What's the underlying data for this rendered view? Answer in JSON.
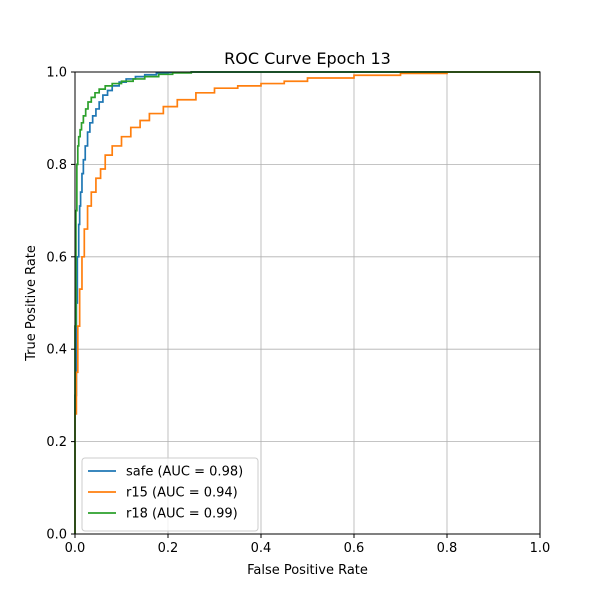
{
  "chart_data": {
    "type": "line",
    "title": "ROC Curve Epoch 13",
    "xlabel": "False Positive Rate",
    "ylabel": "True Positive Rate",
    "xlim": [
      0,
      1
    ],
    "ylim": [
      0,
      1
    ],
    "xticks": [
      "0.0",
      "0.2",
      "0.4",
      "0.6",
      "0.8",
      "1.0"
    ],
    "yticks": [
      "0.0",
      "0.2",
      "0.4",
      "0.6",
      "0.8",
      "1.0"
    ],
    "grid": true,
    "legend_position": "lower-left",
    "series": [
      {
        "name": "safe (AUC = 0.98)",
        "color": "#1f77b4",
        "x": [
          0,
          0,
          0.003,
          0.005,
          0.008,
          0.01,
          0.012,
          0.015,
          0.018,
          0.022,
          0.027,
          0.032,
          0.038,
          0.045,
          0.052,
          0.06,
          0.07,
          0.08,
          0.095,
          0.11,
          0.13,
          0.15,
          0.175,
          0.2,
          0.25,
          0.3,
          1.0
        ],
        "y": [
          0,
          0.08,
          0.3,
          0.5,
          0.6,
          0.67,
          0.71,
          0.74,
          0.78,
          0.81,
          0.84,
          0.87,
          0.89,
          0.905,
          0.92,
          0.935,
          0.95,
          0.96,
          0.97,
          0.978,
          0.985,
          0.99,
          0.994,
          0.997,
          0.999,
          1.0,
          1.0
        ]
      },
      {
        "name": "r15 (AUC = 0.94)",
        "color": "#ff7f0e",
        "x": [
          0,
          0,
          0.003,
          0.006,
          0.01,
          0.015,
          0.02,
          0.027,
          0.035,
          0.045,
          0.055,
          0.065,
          0.08,
          0.1,
          0.12,
          0.14,
          0.16,
          0.19,
          0.22,
          0.26,
          0.3,
          0.35,
          0.4,
          0.45,
          0.5,
          0.6,
          0.7,
          0.8,
          0.88,
          1.0
        ],
        "y": [
          0,
          0.1,
          0.26,
          0.35,
          0.45,
          0.53,
          0.6,
          0.66,
          0.71,
          0.74,
          0.77,
          0.79,
          0.82,
          0.84,
          0.86,
          0.88,
          0.895,
          0.91,
          0.925,
          0.94,
          0.955,
          0.965,
          0.97,
          0.975,
          0.98,
          0.987,
          0.993,
          0.997,
          1.0,
          1.0
        ]
      },
      {
        "name": "r18 (AUC = 0.99)",
        "color": "#2ca02c",
        "x": [
          0,
          0,
          0.002,
          0.004,
          0.006,
          0.008,
          0.011,
          0.014,
          0.018,
          0.023,
          0.028,
          0.035,
          0.043,
          0.052,
          0.065,
          0.08,
          0.1,
          0.125,
          0.15,
          0.18,
          0.21,
          0.25,
          0.3,
          0.4,
          1.0
        ],
        "y": [
          0,
          0.1,
          0.45,
          0.7,
          0.8,
          0.84,
          0.86,
          0.875,
          0.89,
          0.905,
          0.92,
          0.935,
          0.945,
          0.955,
          0.963,
          0.97,
          0.975,
          0.98,
          0.985,
          0.99,
          0.995,
          0.998,
          1.0,
          1.0,
          1.0
        ]
      }
    ]
  }
}
